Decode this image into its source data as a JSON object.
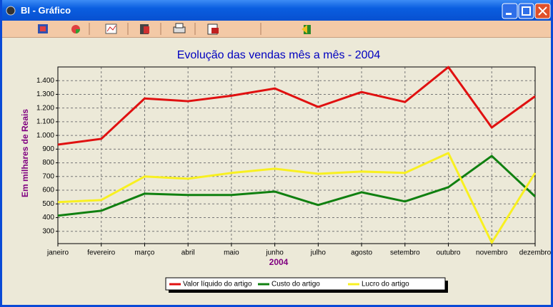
{
  "window_title": "BI - Gráfico",
  "chart_data": {
    "type": "line",
    "title": "Evolução das vendas mês a mês - 2004",
    "x_label": "2004",
    "y_label": "Em milhares de Reais",
    "categories": [
      "janeiro",
      "fevereiro",
      "março",
      "abril",
      "maio",
      "junho",
      "julho",
      "agosto",
      "setembro",
      "outubro",
      "novembro",
      "dezembro"
    ],
    "series": [
      {
        "name": "Valor líquido do artigo",
        "color": "#e01010",
        "values": [
          933,
          975,
          1270,
          1250,
          1290,
          1343,
          1208,
          1317,
          1244,
          1499,
          1058,
          1286
        ]
      },
      {
        "name": "Custo do artigo",
        "color": "#108010",
        "values": [
          414,
          450,
          575,
          565,
          565,
          590,
          492,
          585,
          518,
          622,
          850,
          554
        ]
      },
      {
        "name": "Lucro do artigo",
        "color": "#f8f020",
        "values": [
          513,
          528,
          700,
          684,
          726,
          757,
          720,
          736,
          726,
          871,
          217,
          726
        ]
      }
    ],
    "ylim": [
      210,
      1500
    ],
    "yticks": [
      300,
      400,
      500,
      600,
      700,
      800,
      900,
      {
        "value": 1000,
        "label": "1.000"
      },
      {
        "value": 1100,
        "label": "1.100"
      },
      {
        "value": 1200,
        "label": "1.200"
      },
      {
        "value": 1300,
        "label": "1.300"
      },
      {
        "value": 1400,
        "label": "1.400"
      }
    ],
    "grid": true
  }
}
